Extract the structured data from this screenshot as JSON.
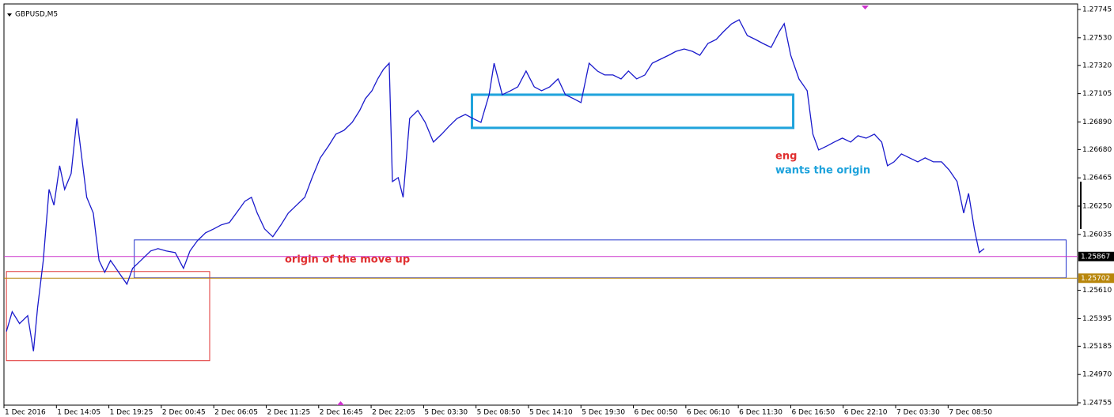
{
  "chart_data": {
    "type": "line",
    "title": "GBPUSD,M5",
    "xlim": [
      0,
      1310
    ],
    "xticks": [
      {
        "value": 0,
        "label": "1 Dec 2016"
      },
      {
        "value": 64,
        "label": "1 Dec 14:05"
      },
      {
        "value": 128,
        "label": "1 Dec 19:25"
      },
      {
        "value": 192,
        "label": "2 Dec 00:45"
      },
      {
        "value": 256,
        "label": "2 Dec 06:05"
      },
      {
        "value": 320,
        "label": "2 Dec 11:25"
      },
      {
        "value": 384,
        "label": "2 Dec 16:45"
      },
      {
        "value": 448,
        "label": "2 Dec 22:05"
      },
      {
        "value": 512,
        "label": "5 Dec 03:30"
      },
      {
        "value": 576,
        "label": "5 Dec 08:50"
      },
      {
        "value": 640,
        "label": "5 Dec 14:10"
      },
      {
        "value": 704,
        "label": "5 Dec 19:30"
      },
      {
        "value": 768,
        "label": "6 Dec 00:50"
      },
      {
        "value": 832,
        "label": "6 Dec 06:10"
      },
      {
        "value": 896,
        "label": "6 Dec 11:30"
      },
      {
        "value": 960,
        "label": "6 Dec 16:50"
      },
      {
        "value": 1024,
        "label": "6 Dec 22:10"
      },
      {
        "value": 1088,
        "label": "7 Dec 03:30"
      },
      {
        "value": 1152,
        "label": "7 Dec 08:50"
      }
    ],
    "ylim": [
      1.24755,
      1.27745
    ],
    "yticks": [
      1.27745,
      {
        "value": 1.2753,
        "label": "1.27530"
      },
      {
        "value": 1.2732,
        "label": "1.27320"
      },
      1.27105,
      {
        "value": 1.2689,
        "label": "1.26890"
      },
      {
        "value": 1.2668,
        "label": "1.26680"
      },
      1.26465,
      {
        "value": 1.2625,
        "label": "1.26250"
      },
      1.26035,
      {
        "value": 1.2561,
        "label": "1.25610"
      },
      1.25395,
      1.25185,
      {
        "value": 1.2497,
        "label": "1.24970"
      },
      1.24755
    ],
    "series": [
      {
        "name": "GBPUSD",
        "color": "#1a1acc",
        "x": [
          3,
          10,
          19,
          29,
          36,
          41,
          48,
          55,
          61,
          68,
          74,
          82,
          89,
          95,
          101,
          109,
          116,
          123,
          130,
          140,
          150,
          157,
          167,
          179,
          188,
          198,
          209,
          219,
          227,
          236,
          246,
          256,
          265,
          275,
          285,
          294,
          302,
          309,
          318,
          328,
          338,
          347,
          357,
          367,
          376,
          386,
          396,
          405,
          415,
          425,
          434,
          441,
          449,
          456,
          463,
          470,
          474,
          481,
          487,
          495,
          505,
          514,
          524,
          534,
          543,
          553,
          563,
          572,
          582,
          592,
          598,
          608,
          618,
          627,
          637,
          647,
          656,
          666,
          676,
          685,
          695,
          704,
          714,
          724,
          733,
          743,
          753,
          762,
          772,
          782,
          791,
          801,
          811,
          820,
          830,
          840,
          849,
          859,
          869,
          878,
          888,
          897,
          907,
          917,
          926,
          936,
          946,
          952,
          960,
          970,
          980,
          987,
          994,
          1004,
          1013,
          1023,
          1033,
          1042,
          1052,
          1062,
          1071,
          1078,
          1086,
          1095,
          1105,
          1115,
          1124,
          1134,
          1144,
          1153,
          1163,
          1171,
          1177,
          1184,
          1190,
          1196
        ],
        "values": [
          1.25297,
          1.25447,
          1.25357,
          1.25417,
          1.25147,
          1.25477,
          1.25837,
          1.26377,
          1.26257,
          1.26557,
          1.26377,
          1.26497,
          1.26917,
          1.26617,
          1.26317,
          1.26197,
          1.25837,
          1.25747,
          1.25837,
          1.25747,
          1.25657,
          1.25777,
          1.25837,
          1.25909,
          1.25927,
          1.25909,
          1.25897,
          1.25777,
          1.25909,
          1.25987,
          1.26047,
          1.26077,
          1.26107,
          1.26125,
          1.26209,
          1.26287,
          1.26317,
          1.26197,
          1.26077,
          1.26017,
          1.26107,
          1.26197,
          1.26257,
          1.26317,
          1.26467,
          1.26617,
          1.26707,
          1.26797,
          1.26827,
          1.26887,
          1.26977,
          1.27067,
          1.27127,
          1.27217,
          1.27289,
          1.27337,
          1.26437,
          1.26467,
          1.26317,
          1.26917,
          1.26977,
          1.26887,
          1.26737,
          1.26797,
          1.26857,
          1.26917,
          1.26947,
          1.26917,
          1.26887,
          1.27097,
          1.27337,
          1.27097,
          1.27127,
          1.27157,
          1.27277,
          1.27157,
          1.27127,
          1.27157,
          1.27217,
          1.27097,
          1.27067,
          1.27037,
          1.27337,
          1.27277,
          1.27247,
          1.27247,
          1.27217,
          1.27277,
          1.27217,
          1.27247,
          1.27337,
          1.27367,
          1.27397,
          1.27427,
          1.27445,
          1.27427,
          1.27397,
          1.27487,
          1.27517,
          1.27577,
          1.27637,
          1.27667,
          1.27547,
          1.27517,
          1.27487,
          1.27457,
          1.27577,
          1.27637,
          1.27397,
          1.27217,
          1.27127,
          1.26797,
          1.26677,
          1.26707,
          1.26737,
          1.26767,
          1.26737,
          1.26785,
          1.26767,
          1.26797,
          1.26737,
          1.26557,
          1.26587,
          1.26647,
          1.26617,
          1.26587,
          1.26617,
          1.26587,
          1.26587,
          1.26527,
          1.26437,
          1.26197,
          1.26347,
          1.26077,
          1.25897,
          1.25927
        ]
      }
    ],
    "hlines": [
      {
        "value": 1.25867,
        "color": "#cc33cc"
      },
      {
        "value": 1.25702,
        "color": "#b8860b"
      }
    ],
    "rectangles": [
      {
        "color": "#2233cc",
        "x": [
          159,
          1296
        ],
        "y": [
          1.25705,
          1.25993
        ],
        "width": 1
      },
      {
        "color": "#1fa3dc",
        "x": [
          571,
          963
        ],
        "y": [
          1.26845,
          1.27097
        ],
        "width": 3
      },
      {
        "color": "#e03030",
        "x": [
          3,
          251
        ],
        "y": [
          1.25075,
          1.25753
        ],
        "width": 1
      }
    ],
    "annotations": [
      {
        "text": "eng",
        "color": "#e03030"
      },
      {
        "text": "wants the origin",
        "color": "#1fa3dc"
      },
      {
        "text": "origin of the move up",
        "color": "#e03030"
      }
    ]
  }
}
